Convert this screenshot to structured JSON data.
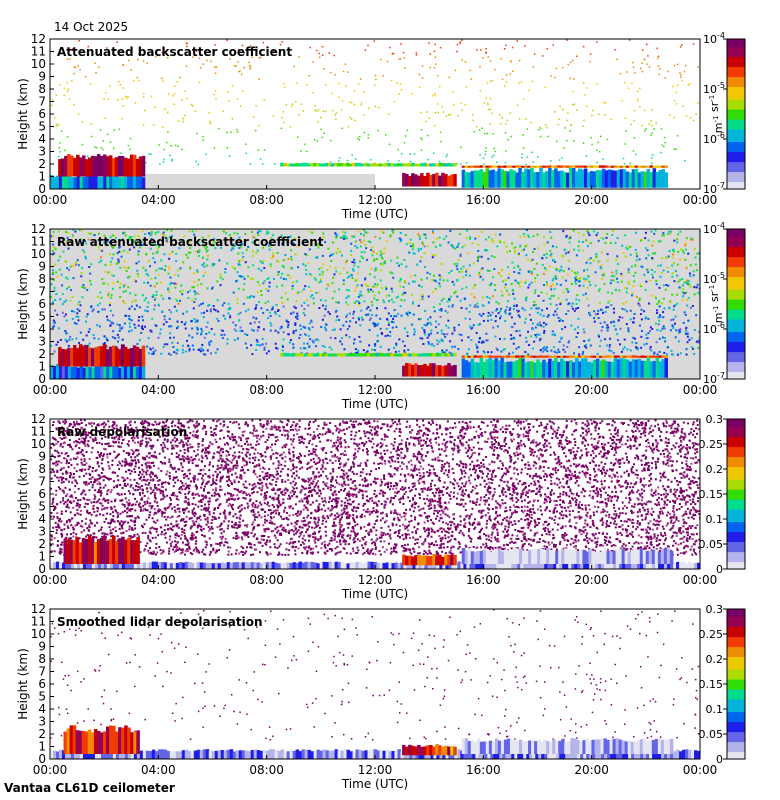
{
  "date": "14 Oct 2025",
  "station": "Vantaa CL61D ceilometer",
  "colors": {
    "background": "#ffffff",
    "clear_sky": "#d9d9d9",
    "colormap": [
      "#e6e6f2",
      "#b4b4eb",
      "#6464e6",
      "#1e1ee6",
      "#0064f0",
      "#00b4dc",
      "#00dc8c",
      "#32dc00",
      "#aadc00",
      "#f0c800",
      "#f08c00",
      "#f03c00",
      "#c80000",
      "#960050",
      "#780064"
    ]
  },
  "chart_data": [
    {
      "type": "heatmap",
      "name": "attenuated-backscatter",
      "title": "Attenuated backscatter coefficient",
      "xlabel": "Time (UTC)",
      "ylabel": "Height (km)",
      "xlim": [
        0,
        24
      ],
      "ylim": [
        0,
        12
      ],
      "x_ticks": [
        "00:00",
        "04:00",
        "08:00",
        "12:00",
        "16:00",
        "20:00",
        "00:00"
      ],
      "y_ticks": [
        "0",
        "1",
        "2",
        "3",
        "4",
        "5",
        "6",
        "7",
        "8",
        "9",
        "10",
        "11",
        "12"
      ],
      "colorbar": {
        "scale": "log",
        "range": [
          1e-07,
          0.0001
        ],
        "ticks": [
          "10-7",
          "10-6",
          "10-5",
          "10-4"
        ],
        "unit": "m-1 sr-1"
      },
      "features": [
        {
          "name": "boundary layer aerosol",
          "t": [
            0.0,
            3.5
          ],
          "h": [
            0.0,
            1.2
          ],
          "level": 0.3
        },
        {
          "name": "low cloud",
          "t": [
            0.3,
            3.5
          ],
          "h": [
            1.0,
            2.8
          ],
          "level": 0.9
        },
        {
          "name": "thin cloud layer",
          "t": [
            8.5,
            15.0
          ],
          "h": [
            1.8,
            2.1
          ],
          "level": 0.5
        },
        {
          "name": "cloud base",
          "t": [
            13.0,
            15.0
          ],
          "h": [
            0.2,
            1.3
          ],
          "level": 0.9
        },
        {
          "name": "stratus layer",
          "t": [
            15.2,
            22.8
          ],
          "h": [
            0.1,
            1.7
          ],
          "level": 0.35
        },
        {
          "name": "stratus top",
          "t": [
            15.2,
            22.8
          ],
          "h": [
            1.7,
            1.9
          ],
          "level": 0.75
        }
      ]
    },
    {
      "type": "heatmap",
      "name": "raw-attenuated-backscatter",
      "title": "Raw attenuated backscatter coefficient",
      "xlabel": "Time (UTC)",
      "ylabel": "Height (km)",
      "xlim": [
        0,
        24
      ],
      "ylim": [
        0,
        12
      ],
      "x_ticks": [
        "00:00",
        "04:00",
        "08:00",
        "12:00",
        "16:00",
        "20:00",
        "00:00"
      ],
      "y_ticks": [
        "0",
        "1",
        "2",
        "3",
        "4",
        "5",
        "6",
        "7",
        "8",
        "9",
        "10",
        "11",
        "12"
      ],
      "colorbar": {
        "scale": "log",
        "range": [
          1e-07,
          0.0001
        ],
        "ticks": [
          "10-7",
          "10-6",
          "10-5",
          "10-4"
        ],
        "unit": "m-1 sr-1"
      },
      "features": [
        {
          "name": "boundary layer aerosol",
          "t": [
            0.0,
            3.5
          ],
          "h": [
            0.0,
            1.2
          ],
          "level": 0.3
        },
        {
          "name": "low cloud",
          "t": [
            0.3,
            3.5
          ],
          "h": [
            1.0,
            2.8
          ],
          "level": 0.9
        },
        {
          "name": "thin cloud layer",
          "t": [
            8.5,
            15.0
          ],
          "h": [
            1.8,
            2.1
          ],
          "level": 0.5
        },
        {
          "name": "cloud base",
          "t": [
            13.0,
            15.0
          ],
          "h": [
            0.2,
            1.3
          ],
          "level": 0.9
        },
        {
          "name": "stratus layer",
          "t": [
            15.2,
            22.8
          ],
          "h": [
            0.1,
            1.7
          ],
          "level": 0.35
        },
        {
          "name": "stratus top",
          "t": [
            15.2,
            22.8
          ],
          "h": [
            1.7,
            1.9
          ],
          "level": 0.75
        }
      ]
    },
    {
      "type": "heatmap",
      "name": "raw-depolarisation",
      "title": "Raw depolarisation",
      "xlabel": "Time (UTC)",
      "ylabel": "Height (km)",
      "xlim": [
        0,
        24
      ],
      "ylim": [
        0,
        12
      ],
      "x_ticks": [
        "00:00",
        "04:00",
        "08:00",
        "12:00",
        "16:00",
        "20:00",
        "00:00"
      ],
      "y_ticks": [
        "0",
        "1",
        "2",
        "3",
        "4",
        "5",
        "6",
        "7",
        "8",
        "9",
        "10",
        "11",
        "12"
      ],
      "colorbar": {
        "scale": "linear",
        "range": [
          0,
          0.3
        ],
        "ticks": [
          "0",
          "0.05",
          "0.1",
          "0.15",
          "0.2",
          "0.25",
          "0.3"
        ],
        "unit": ""
      },
      "features": [
        {
          "name": "surface layer",
          "t": [
            0.0,
            24.0
          ],
          "h": [
            0.0,
            0.6
          ],
          "level": 0.1
        },
        {
          "name": "low cloud",
          "t": [
            0.5,
            3.3
          ],
          "h": [
            0.4,
            2.7
          ],
          "level": 0.85
        },
        {
          "name": "cloud layer",
          "t": [
            13.0,
            15.0
          ],
          "h": [
            0.3,
            1.2
          ],
          "level": 0.8
        },
        {
          "name": "stratus layer",
          "t": [
            15.2,
            23.0
          ],
          "h": [
            0.4,
            1.7
          ],
          "level": 0.05
        }
      ]
    },
    {
      "type": "heatmap",
      "name": "smoothed-lidar-depolarisation",
      "title": "Smoothed lidar depolarisation",
      "xlabel": "Time (UTC)",
      "ylabel": "Height (km)",
      "xlim": [
        0,
        24
      ],
      "ylim": [
        0,
        12
      ],
      "x_ticks": [
        "00:00",
        "04:00",
        "08:00",
        "12:00",
        "16:00",
        "20:00",
        "00:00"
      ],
      "y_ticks": [
        "0",
        "1",
        "2",
        "3",
        "4",
        "5",
        "6",
        "7",
        "8",
        "9",
        "10",
        "11",
        "12"
      ],
      "colorbar": {
        "scale": "linear",
        "range": [
          0,
          0.3
        ],
        "ticks": [
          "0",
          "0.05",
          "0.1",
          "0.15",
          "0.2",
          "0.25",
          "0.3"
        ],
        "unit": ""
      },
      "features": [
        {
          "name": "surface layer",
          "t": [
            0.0,
            24.0
          ],
          "h": [
            0.0,
            0.8
          ],
          "level": 0.12
        },
        {
          "name": "low cloud",
          "t": [
            0.5,
            3.3
          ],
          "h": [
            0.4,
            2.7
          ],
          "level": 0.85
        },
        {
          "name": "cloud layer",
          "t": [
            13.0,
            15.0
          ],
          "h": [
            0.3,
            1.2
          ],
          "level": 0.8
        },
        {
          "name": "stratus layer",
          "t": [
            15.2,
            23.0
          ],
          "h": [
            0.4,
            1.7
          ],
          "level": 0.05
        }
      ]
    }
  ]
}
